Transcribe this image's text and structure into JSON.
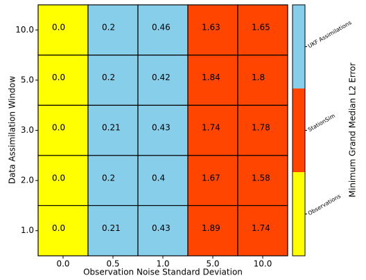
{
  "chart_data": {
    "type": "heatmap",
    "x_label": "Observation Noise Standard Deviation",
    "y_label": "Data Assimilation Window",
    "x_categories": [
      "0.0",
      "0.5",
      "1.0",
      "5.0",
      "10.0"
    ],
    "y_categories": [
      "1.0",
      "2.0",
      "3.0",
      "5.0",
      "10.0"
    ],
    "values": [
      [
        0.0,
        0.21,
        0.43,
        1.89,
        1.74
      ],
      [
        0.0,
        0.2,
        0.4,
        1.67,
        1.58
      ],
      [
        0.0,
        0.21,
        0.43,
        1.74,
        1.78
      ],
      [
        0.0,
        0.2,
        0.42,
        1.84,
        1.8
      ],
      [
        0.0,
        0.2,
        0.46,
        1.63,
        1.65
      ]
    ],
    "value_labels": [
      [
        "0.0",
        "0.21",
        "0.43",
        "1.89",
        "1.74"
      ],
      [
        "0.0",
        "0.2",
        "0.4",
        "1.67",
        "1.58"
      ],
      [
        "0.0",
        "0.21",
        "0.43",
        "1.74",
        "1.78"
      ],
      [
        "0.0",
        "0.2",
        "0.42",
        "1.84",
        "1.8"
      ],
      [
        "0.0",
        "0.2",
        "0.46",
        "1.63",
        "1.65"
      ]
    ],
    "cell_colors": [
      [
        "#ffff00",
        "#87ceeb",
        "#87ceeb",
        "#ff4500",
        "#ff4500"
      ],
      [
        "#ffff00",
        "#87ceeb",
        "#87ceeb",
        "#ff4500",
        "#ff4500"
      ],
      [
        "#ffff00",
        "#87ceeb",
        "#87ceeb",
        "#ff4500",
        "#ff4500"
      ],
      [
        "#ffff00",
        "#87ceeb",
        "#87ceeb",
        "#ff4500",
        "#ff4500"
      ],
      [
        "#ffff00",
        "#87ceeb",
        "#87ceeb",
        "#ff4500",
        "#ff4500"
      ]
    ],
    "colorbar": {
      "label": "Minimum Grand Median L2 Error",
      "classes": [
        {
          "name": "Observations",
          "color": "#ffff00"
        },
        {
          "name": "StationSim",
          "color": "#ff4500"
        },
        {
          "name": "UKF Assimilations",
          "color": "#87ceeb"
        }
      ]
    }
  }
}
